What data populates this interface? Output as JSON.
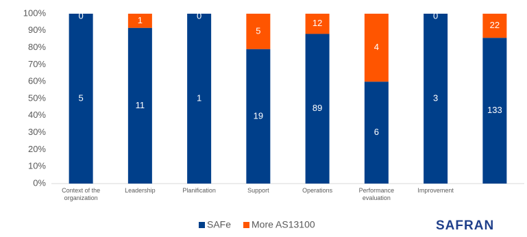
{
  "chart_data": {
    "type": "bar",
    "stacking": "percent",
    "categories": [
      "Context of the organization",
      "Leadership",
      "Planification",
      "Support",
      "Operations",
      "Performance evaluation",
      "Improvement",
      null
    ],
    "series": [
      {
        "name": "SAFe",
        "color": "#003f8a",
        "values": [
          5,
          11,
          1,
          19,
          89,
          6,
          3,
          133
        ]
      },
      {
        "name": "More AS13100",
        "color": "#ff5500",
        "values": [
          0,
          1,
          0,
          5,
          12,
          4,
          0,
          22
        ]
      }
    ],
    "ylim": [
      0,
      100
    ],
    "yticks": [
      {
        "value": 0,
        "label": "0%"
      },
      {
        "value": 10,
        "label": "10%"
      },
      {
        "value": 20,
        "label": "20%"
      },
      {
        "value": 30,
        "label": "30%"
      },
      {
        "value": 40,
        "label": "40%"
      },
      {
        "value": 50,
        "label": "50%"
      },
      {
        "value": 60,
        "label": "60%"
      },
      {
        "value": 70,
        "label": "70%"
      },
      {
        "value": 80,
        "label": "80%"
      },
      {
        "value": 90,
        "label": "90%"
      },
      {
        "value": 100,
        "label": "100%"
      }
    ],
    "grid": false,
    "legend": "bottom"
  },
  "logo": "SAFRAN"
}
